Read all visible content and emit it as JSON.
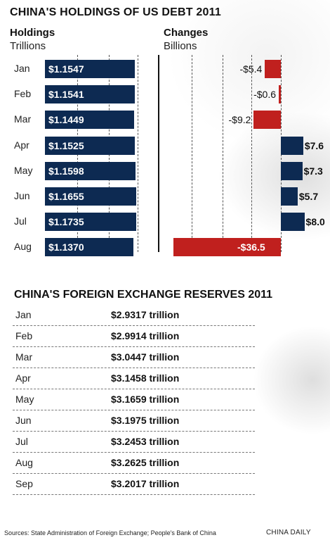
{
  "title": "CHINA'S HOLDINGS OF US DEBT 2011",
  "holdings_header": "Holdings",
  "holdings_unit": "Trillions",
  "changes_header": "Changes",
  "changes_unit": "Billions",
  "reserves_title": "CHINA'S FOREIGN EXCHANGE RESERVES 2011",
  "source": "Sources: State Administration of Foreign Exchange; People's Bank of China",
  "credit": "CHINA DAILY",
  "colors": {
    "navy": "#0d2a52",
    "red": "#c0201e"
  },
  "chart_data": [
    {
      "type": "bar",
      "title": "CHINA'S HOLDINGS OF US DEBT 2011",
      "ylabel": "Holdings (Trillions)",
      "categories": [
        "Jan",
        "Feb",
        "Mar",
        "Apr",
        "May",
        "Jun",
        "Jul",
        "Aug"
      ],
      "values": [
        1.1547,
        1.1541,
        1.1449,
        1.1525,
        1.1598,
        1.1655,
        1.1735,
        1.137
      ],
      "labels": [
        "$1.1547",
        "$1.1541",
        "$1.1449",
        "$1.1525",
        "$1.1598",
        "$1.1655",
        "$1.1735",
        "$1.1370"
      ],
      "orientation": "horizontal"
    },
    {
      "type": "bar",
      "title": "",
      "ylabel": "Changes (Billions)",
      "categories": [
        "Jan",
        "Feb",
        "Mar",
        "Apr",
        "May",
        "Jun",
        "Jul",
        "Aug"
      ],
      "values": [
        -5.4,
        -0.6,
        -9.2,
        7.6,
        7.3,
        5.7,
        8.0,
        -36.5
      ],
      "labels": [
        "-$5.4",
        "-$0.6",
        "-$9.2",
        "$7.6",
        "$7.3",
        "$5.7",
        "$8.0",
        "-$36.5"
      ],
      "orientation": "horizontal"
    },
    {
      "type": "table",
      "title": "CHINA'S FOREIGN EXCHANGE RESERVES 2011",
      "categories": [
        "Jan",
        "Feb",
        "Mar",
        "Apr",
        "May",
        "Jun",
        "Jul",
        "Aug",
        "Sep"
      ],
      "values": [
        2.9317,
        2.9914,
        3.0447,
        3.1458,
        3.1659,
        3.1975,
        3.2453,
        3.2625,
        3.2017
      ],
      "labels": [
        "$2.9317 trillion",
        "$2.9914 trillion",
        "$3.0447 trillion",
        "$3.1458 trillion",
        "$3.1659 trillion",
        "$3.1975 trillion",
        "$3.2453 trillion",
        "$3.2625 trillion",
        "$3.2017 trillion"
      ]
    }
  ]
}
